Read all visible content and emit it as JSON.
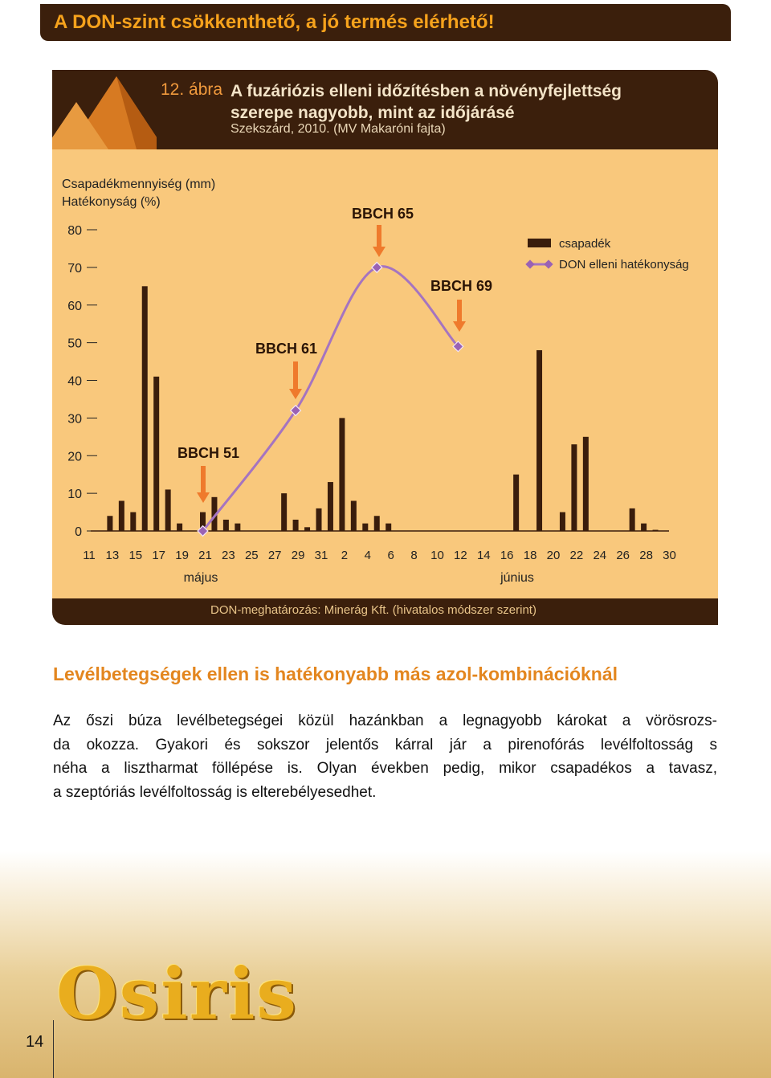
{
  "header": {
    "title": "A DON-szint csökkenthető, a jó termés elérhető!"
  },
  "figure": {
    "number": "12. ábra",
    "title": "A fuzáriózis elleni időzítésben a növényfejlettség szerepe nagyobb, mint az időjárásé",
    "subtitle": "Szekszárd, 2010. (MV Makaróni fajta)",
    "note": "DON-meghatározás: Minerág Kft. (hivatalos módszer szerint)"
  },
  "chart_data": {
    "type": "bar",
    "y_label": [
      "Csapadékmennyiség (mm)",
      "Hatékonyság (%)"
    ],
    "categories": [
      "11",
      null,
      "13",
      null,
      "15",
      null,
      "17",
      null,
      "19",
      null,
      "21",
      null,
      "23",
      null,
      "25",
      null,
      "27",
      null,
      "29",
      null,
      "31",
      null,
      "2",
      null,
      "4",
      null,
      "6",
      null,
      "8",
      null,
      "10",
      null,
      "12",
      null,
      "14",
      null,
      "16",
      null,
      "18",
      null,
      "20",
      null,
      "22",
      null,
      "24",
      null,
      "26",
      null,
      "28",
      null,
      "30"
    ],
    "months": [
      "május",
      "június"
    ],
    "ylim": [
      0,
      80
    ],
    "yticks": [
      0,
      10,
      20,
      30,
      40,
      50,
      60,
      70,
      80
    ],
    "connect_gaps": true,
    "series": [
      {
        "name": "csapadék",
        "type": "bar",
        "color": "#3a1d0c",
        "values": [
          null,
          null,
          4,
          8,
          5,
          65,
          41,
          11,
          2,
          null,
          5,
          9,
          3,
          2,
          null,
          null,
          null,
          10,
          3,
          1,
          6,
          13,
          30,
          8,
          2,
          4,
          2,
          null,
          null,
          null,
          null,
          null,
          null,
          null,
          null,
          null,
          null,
          15,
          null,
          48,
          null,
          5,
          23,
          25,
          null,
          null,
          null,
          6,
          2,
          0.3,
          null
        ]
      },
      {
        "name": "DON elleni hatékonyság",
        "type": "line",
        "color": "#a574c0",
        "marker_color": "#9a62b4",
        "values": [
          null,
          null,
          null,
          null,
          null,
          null,
          null,
          null,
          null,
          null,
          0,
          null,
          null,
          null,
          null,
          null,
          null,
          null,
          32,
          null,
          null,
          null,
          null,
          null,
          null,
          70,
          null,
          null,
          null,
          null,
          null,
          null,
          49,
          null,
          null,
          null,
          null,
          null,
          null,
          null,
          null,
          null,
          null,
          null,
          null,
          null,
          null,
          null,
          null,
          null,
          null
        ]
      }
    ],
    "annotations": [
      "BBCH 51",
      "BBCH 61",
      "BBCH 65",
      "BBCH 69"
    ],
    "annotation_color": "#ef7a2c"
  },
  "section": {
    "heading": "Levélbetegségek ellen is hatékonyabb más azol-kombinációknál",
    "lines": [
      "Az őszi búza levélbetegségei közül hazánkban a legnagyobb károkat a vörösrozs-",
      "da okozza. Gyakori és sokszor jelentős kárral jár a pirenofórás levélfoltosság s",
      "néha a lisztharmat föllépése is. Olyan években pedig, mikor csapadékos a tavasz,",
      "a szeptóriás levélfoltosság is elterebélyesedhet."
    ]
  },
  "logo": "Osiris",
  "page_number": "14"
}
